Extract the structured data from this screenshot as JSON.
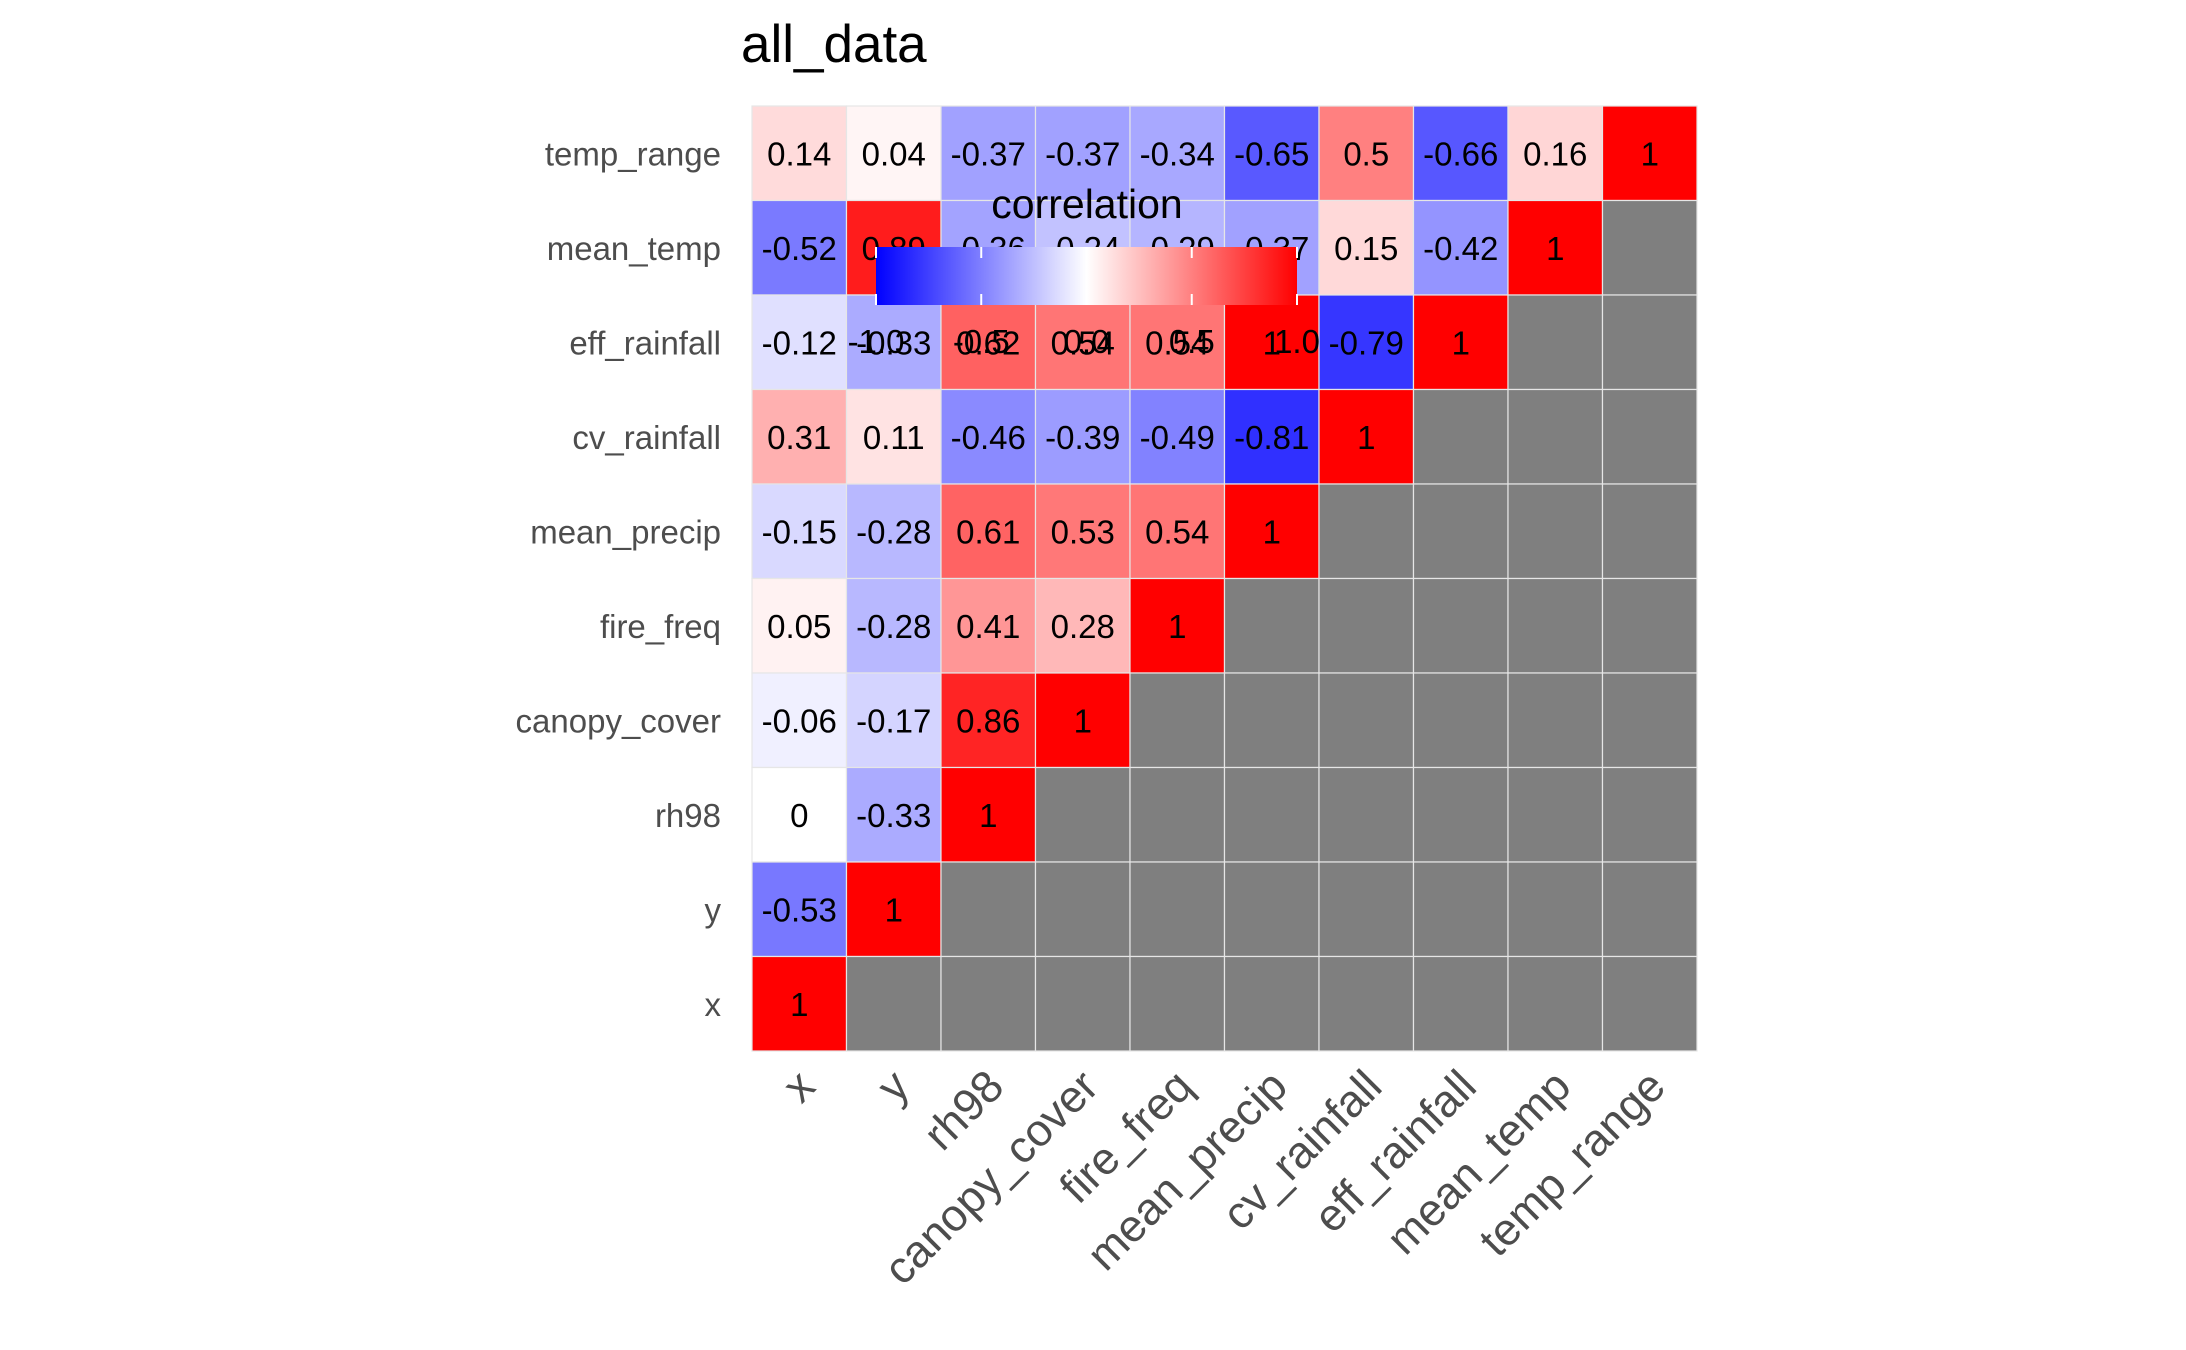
{
  "chart_data": {
    "type": "heatmap",
    "title": "all_data",
    "variables": [
      "x",
      "y",
      "rh98",
      "canopy_cover",
      "fire_freq",
      "mean_precip",
      "cv_rainfall",
      "eff_rainfall",
      "mean_temp",
      "temp_range"
    ],
    "lower_triangle_values": [
      [
        1
      ],
      [
        -0.53,
        1
      ],
      [
        0,
        -0.33,
        1
      ],
      [
        -0.06,
        -0.17,
        0.86,
        1
      ],
      [
        0.05,
        -0.28,
        0.41,
        0.28,
        1
      ],
      [
        -0.15,
        -0.28,
        0.61,
        0.53,
        0.54,
        1
      ],
      [
        0.31,
        0.11,
        -0.46,
        -0.39,
        -0.49,
        -0.81,
        1
      ],
      [
        -0.12,
        -0.33,
        0.62,
        0.54,
        0.54,
        1,
        -0.79,
        1
      ],
      [
        -0.52,
        0.89,
        -0.36,
        -0.24,
        -0.29,
        -0.37,
        0.15,
        -0.42,
        1
      ],
      [
        0.14,
        0.04,
        -0.37,
        -0.37,
        -0.34,
        -0.65,
        0.5,
        -0.66,
        0.16,
        1
      ]
    ],
    "masked_color": "#7f7f7f",
    "grid_line_color": "#e6e6e6",
    "colorscale": {
      "low": "#0000ff",
      "mid": "#ffffff",
      "high": "#ff0000",
      "range": [
        -1,
        1
      ]
    },
    "legend": {
      "title": "correlation",
      "ticks": [
        "-1.0",
        "-0.5",
        "0.0",
        "0.5",
        "1.0"
      ],
      "placement": "inside-top-left"
    },
    "grid": false
  }
}
